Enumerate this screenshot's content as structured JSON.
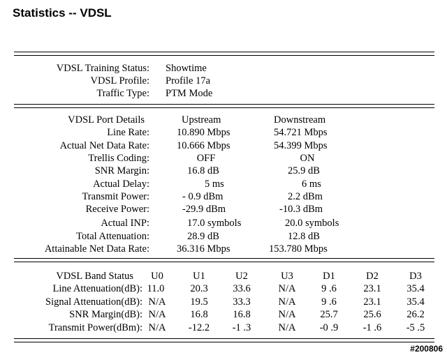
{
  "page_title": "Statistics -- VDSL",
  "training": {
    "rows": [
      {
        "label": "VDSL Training Status:",
        "value": "Showtime"
      },
      {
        "label": "VDSL Profile:",
        "value": "Profile 17a"
      },
      {
        "label": "Traffic Type:",
        "value": "PTM Mode"
      }
    ]
  },
  "port": {
    "header": {
      "label": "VDSL Port Details",
      "up": "Upstream",
      "down": "Downstream"
    },
    "rows": [
      {
        "label": "Line Rate:",
        "up": "10.890 Mbps",
        "down": "54.721 Mbps"
      },
      {
        "label": "Actual Net Data Rate:",
        "up": "10.666 Mbps",
        "down": "54.399 Mbps"
      },
      {
        "label": "Trellis Coding:",
        "up": "OFF",
        "down": "ON"
      },
      {
        "label": "SNR Margin:",
        "up": "16.8 dB",
        "down": "25.9 dB"
      },
      {
        "label": "Actual Delay:",
        "up": "5 ms",
        "down": "6 ms"
      },
      {
        "label": "Transmit Power:",
        "up": "- 0.9 dBm",
        "down": "2.2 dBm"
      },
      {
        "label": "Receive Power:",
        "up": "-29.9 dBm",
        "down": "-10.3 dBm"
      },
      {
        "label": "Actual INP:",
        "up": "17.0 symbols",
        "down": "20.0 symbols"
      },
      {
        "label": "Total Attenuation:",
        "up": "28.9 dB",
        "down": "12.8 dB"
      },
      {
        "label": "Attainable Net Data Rate:",
        "up": "36.316 Mbps",
        "down": "153.780 Mbps"
      }
    ]
  },
  "band": {
    "header": {
      "label": "VDSL Band Status",
      "cols": [
        "U0",
        "U1",
        "U2",
        "U3",
        "D1",
        "D2",
        "D3"
      ]
    },
    "rows": [
      {
        "label": "Line Attenuation(dB):",
        "vals": [
          "11.0",
          "20.3",
          "33.6",
          "N/A",
          "9 .6",
          "23.1",
          "35.4"
        ]
      },
      {
        "label": "Signal Attenuation(dB):",
        "vals": [
          "N/A",
          "19.5",
          "33.3",
          "N/A",
          "9 .6",
          "23.1",
          "35.4"
        ]
      },
      {
        "label": "SNR Margin(dB):",
        "vals": [
          "N/A",
          "16.8",
          "16.8",
          "N/A",
          "25.7",
          "25.6",
          "26.2"
        ]
      },
      {
        "label": "Transmit Power(dBm):",
        "vals": [
          "N/A",
          "-12.2",
          "-1 .3",
          "N/A",
          "-0 .9",
          "-1 .6",
          "-5 .5"
        ]
      }
    ]
  },
  "footer_code": "#200806"
}
